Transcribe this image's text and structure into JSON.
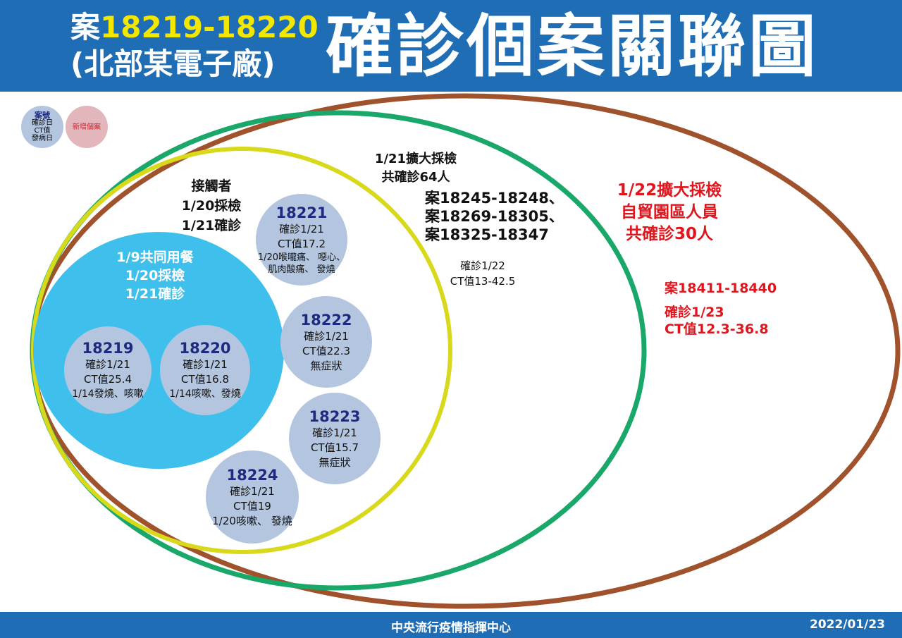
{
  "header": {
    "title_prefix": "案",
    "title_cases": "18219-18220",
    "title_location": "(北部某電子廠)",
    "title_main": "確診個案關聯圖"
  },
  "legend": {
    "case_no": "案號",
    "diagnosis_date": "確診日",
    "ct_value": "CT值",
    "onset_date": "發病日",
    "new_case": "新增個案"
  },
  "colors": {
    "header": "#1f6db5",
    "case_circle": "#b4c6df",
    "meal_group": "#3fbfec",
    "contacts_ring": "#d8d91a",
    "jan21_ring": "#1aa76a",
    "jan22_ring": "#a0522d",
    "red_text": "#e0161e"
  },
  "meal_group": {
    "line1": "1/9共同用餐",
    "line2": "1/20採檢",
    "line3": "1/21確診"
  },
  "contacts": {
    "line1": "接觸者",
    "line2": "1/20採檢",
    "line3": "1/21確診"
  },
  "jan21": {
    "line1": "1/21擴大採檢",
    "line2": "共確診64人",
    "cases1": "案18245-18248、",
    "cases2": "案18269-18305、",
    "cases3": "案18325-18347",
    "diag": "確診1/22",
    "ct": "CT值13-42.5"
  },
  "jan22": {
    "line1": "1/22擴大採檢",
    "line2": "自貿園區人員",
    "line3": "共確診30人",
    "cases": "案18411-18440",
    "diag": "確診1/23",
    "ct": "CT值12.3-36.8"
  },
  "cases": [
    {
      "id": "18219",
      "diag": "確診1/21",
      "ct": "CT值25.4",
      "symptoms": "1/14發燒、咳嗽"
    },
    {
      "id": "18220",
      "diag": "確診1/21",
      "ct": "CT值16.8",
      "symptoms": "1/14咳嗽、發燒"
    },
    {
      "id": "18221",
      "diag": "確診1/21",
      "ct": "CT值17.2",
      "symptoms": "1/20喉嚨痛、 噁心、",
      "symptoms2": "肌肉酸痛、 發燒"
    },
    {
      "id": "18222",
      "diag": "確診1/21",
      "ct": "CT值22.3",
      "symptoms": "無症狀"
    },
    {
      "id": "18223",
      "diag": "確診1/21",
      "ct": "CT值15.7",
      "symptoms": "無症狀"
    },
    {
      "id": "18224",
      "diag": "確診1/21",
      "ct": "CT值19",
      "symptoms": "1/20咳嗽、 發燒"
    }
  ],
  "footer": {
    "org": "中央流行疫情指揮中心",
    "date": "2022/01/23"
  }
}
